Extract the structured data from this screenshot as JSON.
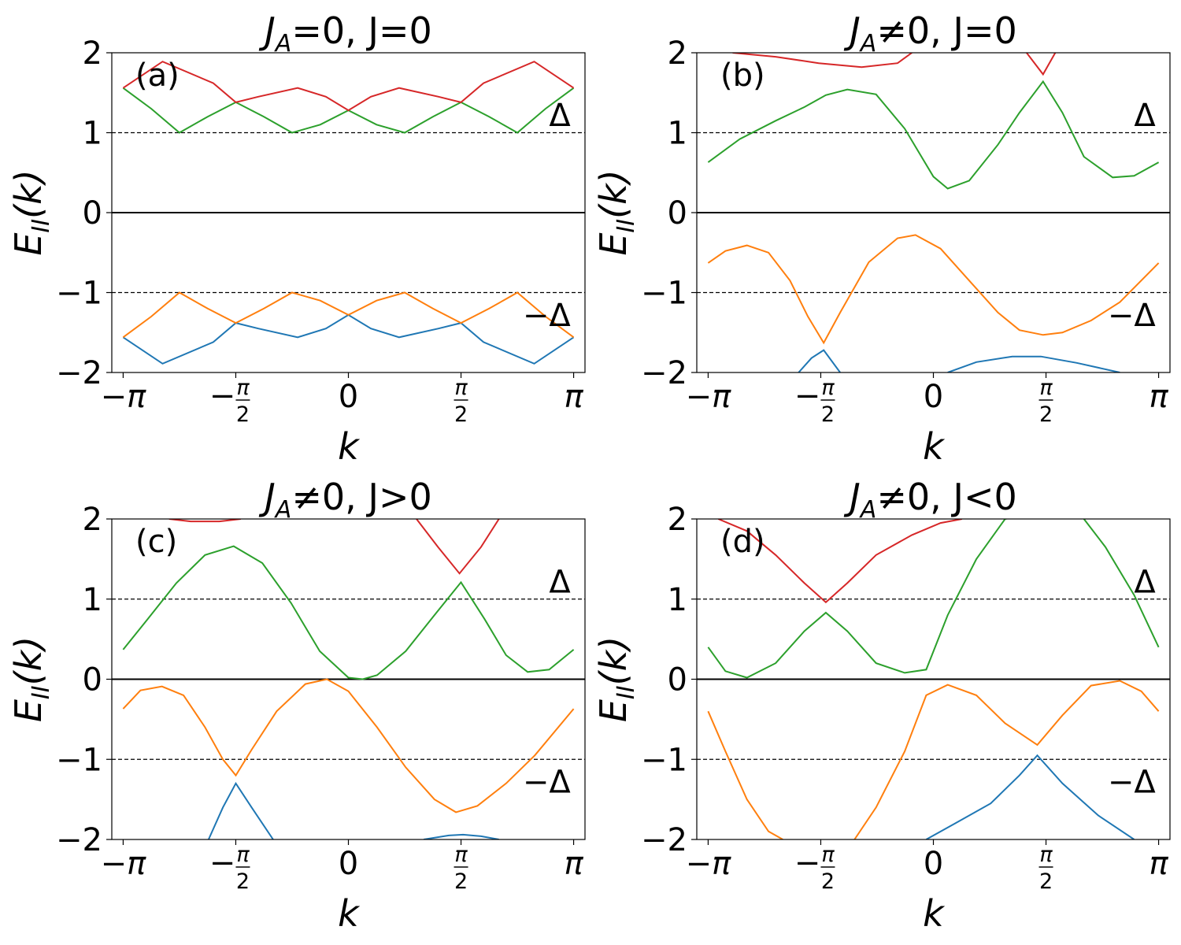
{
  "chart_data": [
    {
      "type": "line",
      "title": "J_A=0, J=0",
      "title_parts": {
        "sym": "J",
        "sub": "A",
        "rest": "=0, J=0"
      },
      "panel_label": "(a)",
      "xlabel": "k",
      "ylabel": "E_II(k)",
      "ylabel_parts": {
        "sym": "E",
        "sub": "II",
        "rest": "(k)"
      },
      "xlim": [
        -3.3,
        3.3
      ],
      "ylim": [
        -2,
        2
      ],
      "yticks": [
        -2,
        -1,
        0,
        1,
        2
      ],
      "ytick_labels": [
        "−2",
        "−1",
        "0",
        "1",
        "2"
      ],
      "hlines": [
        {
          "y": 0,
          "style": "solid"
        },
        {
          "y": 1,
          "style": "dashed"
        },
        {
          "y": -1,
          "style": "dashed"
        }
      ],
      "annotations": [
        {
          "text": "Δ",
          "x": 3.1,
          "y": 1.22
        },
        {
          "text": "−Δ",
          "x": 3.1,
          "y": -1.28
        }
      ],
      "series": [
        {
          "color": "#1f77b4",
          "x": [
            -3.1416,
            -2.5918,
            -1.885,
            -1.5708,
            -1.2566,
            -0.7069,
            -0.3142,
            0.0,
            0.3142,
            0.7069,
            1.2566,
            1.5708,
            1.885,
            2.5918,
            3.1416
          ],
          "y": [
            -1.56,
            -1.89,
            -1.62,
            -1.38,
            -1.45,
            -1.56,
            -1.45,
            -1.28,
            -1.45,
            -1.56,
            -1.45,
            -1.38,
            -1.62,
            -1.89,
            -1.56
          ]
        },
        {
          "color": "#ff7f0e",
          "x": [
            -3.1416,
            -2.7489,
            -2.3562,
            -1.9635,
            -1.5708,
            -1.1781,
            -0.7854,
            -0.3927,
            0.0,
            0.3927,
            0.7854,
            1.1781,
            1.5708,
            1.9635,
            2.3562,
            2.7489,
            3.1416
          ],
          "y": [
            -1.56,
            -1.3,
            -1.0,
            -1.2,
            -1.38,
            -1.2,
            -1.0,
            -1.1,
            -1.28,
            -1.1,
            -1.0,
            -1.2,
            -1.38,
            -1.2,
            -1.0,
            -1.3,
            -1.56
          ]
        },
        {
          "color": "#2ca02c",
          "x": [
            -3.1416,
            -2.7489,
            -2.3562,
            -1.9635,
            -1.5708,
            -1.1781,
            -0.7854,
            -0.3927,
            0.0,
            0.3927,
            0.7854,
            1.1781,
            1.5708,
            1.9635,
            2.3562,
            2.7489,
            3.1416
          ],
          "y": [
            1.56,
            1.3,
            1.0,
            1.2,
            1.38,
            1.2,
            1.0,
            1.1,
            1.28,
            1.1,
            1.0,
            1.2,
            1.38,
            1.2,
            1.0,
            1.3,
            1.56
          ]
        },
        {
          "color": "#d62728",
          "x": [
            -3.1416,
            -2.5918,
            -1.885,
            -1.5708,
            -1.2566,
            -0.7069,
            -0.3142,
            0.0,
            0.3142,
            0.7069,
            1.2566,
            1.5708,
            1.885,
            2.5918,
            3.1416
          ],
          "y": [
            1.56,
            1.89,
            1.62,
            1.38,
            1.45,
            1.56,
            1.45,
            1.28,
            1.45,
            1.56,
            1.45,
            1.38,
            1.62,
            1.89,
            1.56
          ]
        }
      ]
    },
    {
      "type": "line",
      "title": "J_A≠0, J=0",
      "title_parts": {
        "sym": "J",
        "sub": "A",
        "rest": "≠0, J=0"
      },
      "panel_label": "(b)",
      "xlabel": "k",
      "ylabel": "E_II(k)",
      "ylabel_parts": {
        "sym": "E",
        "sub": "II",
        "rest": "(k)"
      },
      "xlim": [
        -3.3,
        3.3
      ],
      "ylim": [
        -2,
        2
      ],
      "yticks": [
        -2,
        -1,
        0,
        1,
        2
      ],
      "ytick_labels": [
        "−2",
        "−1",
        "0",
        "1",
        "2"
      ],
      "hlines": [
        {
          "y": 0,
          "style": "solid"
        },
        {
          "y": 1,
          "style": "dashed"
        },
        {
          "y": -1,
          "style": "dashed"
        }
      ],
      "annotations": [
        {
          "text": "Δ",
          "x": 3.1,
          "y": 1.22
        },
        {
          "text": "−Δ",
          "x": 3.1,
          "y": -1.28
        }
      ],
      "series": [
        {
          "color": "#1f77b4",
          "x": [
            -1.88,
            -1.7,
            -1.53,
            -1.3
          ],
          "y": [
            -2.0,
            -1.82,
            -1.72,
            -2.0
          ],
          "segments": [
            [
              -1.88,
              -1.7,
              -1.53,
              -1.3
            ]
          ]
        },
        {
          "color": "#1f77b4",
          "x": [
            0.2,
            0.6,
            1.1,
            1.5,
            2.0,
            2.6
          ],
          "y": [
            -2.0,
            -1.87,
            -1.8,
            -1.8,
            -1.88,
            -2.0
          ]
        },
        {
          "color": "#ff7f0e",
          "x": [
            -3.1416,
            -2.9,
            -2.6,
            -2.3,
            -2.0,
            -1.75,
            -1.53,
            -1.3,
            -0.9,
            -0.5,
            -0.25,
            0.1,
            0.5,
            0.9,
            1.2,
            1.53,
            1.8,
            2.2,
            2.6,
            3.1416
          ],
          "y": [
            -0.63,
            -0.48,
            -0.41,
            -0.5,
            -0.85,
            -1.3,
            -1.63,
            -1.25,
            -0.62,
            -0.32,
            -0.28,
            -0.45,
            -0.85,
            -1.25,
            -1.47,
            -1.53,
            -1.5,
            -1.35,
            -1.12,
            -0.63
          ]
        },
        {
          "color": "#2ca02c",
          "x": [
            -3.1416,
            -2.7,
            -2.2,
            -1.8,
            -1.5,
            -1.2,
            -0.8,
            -0.4,
            0.0,
            0.2,
            0.5,
            0.9,
            1.2,
            1.53,
            1.8,
            2.1,
            2.5,
            2.8,
            3.1416
          ],
          "y": [
            0.63,
            0.92,
            1.15,
            1.32,
            1.47,
            1.54,
            1.48,
            1.05,
            0.45,
            0.3,
            0.4,
            0.85,
            1.25,
            1.64,
            1.25,
            0.7,
            0.44,
            0.46,
            0.63
          ]
        },
        {
          "color": "#d62728",
          "x": [
            -2.8,
            -2.2,
            -1.6,
            -1.0,
            -0.5,
            -0.3
          ],
          "y": [
            2.0,
            1.95,
            1.87,
            1.82,
            1.87,
            2.0
          ]
        },
        {
          "color": "#d62728",
          "x": [
            1.3,
            1.53,
            1.7
          ],
          "y": [
            2.0,
            1.73,
            2.0
          ]
        }
      ]
    },
    {
      "type": "line",
      "title": "J_A≠0, J>0",
      "title_parts": {
        "sym": "J",
        "sub": "A",
        "rest": "≠0, J>0"
      },
      "panel_label": "(c)",
      "xlabel": "k",
      "ylabel": "E_II(k)",
      "ylabel_parts": {
        "sym": "E",
        "sub": "II",
        "rest": "(k)"
      },
      "xlim": [
        -3.3,
        3.3
      ],
      "ylim": [
        -2,
        2
      ],
      "yticks": [
        -2,
        -1,
        0,
        1,
        2
      ],
      "ytick_labels": [
        "−2",
        "−1",
        "0",
        "1",
        "2"
      ],
      "hlines": [
        {
          "y": 0,
          "style": "solid"
        },
        {
          "y": 1,
          "style": "dashed"
        },
        {
          "y": -1,
          "style": "dashed"
        }
      ],
      "annotations": [
        {
          "text": "Δ",
          "x": 3.1,
          "y": 1.22
        },
        {
          "text": "−Δ",
          "x": 3.1,
          "y": -1.28
        }
      ],
      "series": [
        {
          "color": "#1f77b4",
          "x": [
            -1.95,
            -1.75,
            -1.57,
            -1.35,
            -1.05
          ],
          "y": [
            -2.0,
            -1.6,
            -1.3,
            -1.6,
            -2.0
          ]
        },
        {
          "color": "#1f77b4",
          "x": [
            1.05,
            1.4,
            1.6,
            1.85,
            2.1
          ],
          "y": [
            -2.0,
            -1.95,
            -1.94,
            -1.96,
            -2.0
          ]
        },
        {
          "color": "#ff7f0e",
          "x": [
            -3.1416,
            -2.9,
            -2.6,
            -2.3,
            -2.0,
            -1.75,
            -1.57,
            -1.35,
            -1.0,
            -0.6,
            -0.3,
            0.0,
            0.4,
            0.8,
            1.2,
            1.5,
            1.8,
            2.2,
            2.6,
            3.1416
          ],
          "y": [
            -0.37,
            -0.14,
            -0.09,
            -0.2,
            -0.6,
            -1.0,
            -1.2,
            -0.88,
            -0.4,
            -0.06,
            0.0,
            -0.15,
            -0.6,
            -1.1,
            -1.5,
            -1.66,
            -1.58,
            -1.3,
            -0.95,
            -0.37
          ]
        },
        {
          "color": "#2ca02c",
          "x": [
            -3.1416,
            -2.8,
            -2.4,
            -2.0,
            -1.6,
            -1.2,
            -0.8,
            -0.4,
            0.0,
            0.2,
            0.4,
            0.8,
            1.2,
            1.57,
            1.9,
            2.2,
            2.5,
            2.8,
            3.1416
          ],
          "y": [
            0.37,
            0.75,
            1.2,
            1.55,
            1.66,
            1.45,
            0.95,
            0.35,
            0.02,
            0.0,
            0.05,
            0.35,
            0.8,
            1.21,
            0.75,
            0.3,
            0.09,
            0.12,
            0.37
          ]
        },
        {
          "color": "#d62728",
          "x": [
            -2.5,
            -2.2,
            -1.8,
            -1.5
          ],
          "y": [
            2.0,
            1.97,
            1.97,
            2.0
          ]
        },
        {
          "color": "#d62728",
          "x": [
            0.95,
            1.25,
            1.55,
            1.85,
            2.1
          ],
          "y": [
            2.0,
            1.65,
            1.32,
            1.65,
            2.0
          ]
        }
      ]
    },
    {
      "type": "line",
      "title": "J_A≠0, J<0",
      "title_parts": {
        "sym": "J",
        "sub": "A",
        "rest": "≠0, J<0"
      },
      "panel_label": "(d)",
      "xlabel": "k",
      "ylabel": "E_II(k)",
      "ylabel_parts": {
        "sym": "E",
        "sub": "II",
        "rest": "(k)"
      },
      "xlim": [
        -3.3,
        3.3
      ],
      "ylim": [
        -2,
        2
      ],
      "yticks": [
        -2,
        -1,
        0,
        1,
        2
      ],
      "ytick_labels": [
        "−2",
        "−1",
        "0",
        "1",
        "2"
      ],
      "hlines": [
        {
          "y": 0,
          "style": "solid"
        },
        {
          "y": 1,
          "style": "dashed"
        },
        {
          "y": -1,
          "style": "dashed"
        }
      ],
      "annotations": [
        {
          "text": "Δ",
          "x": 3.1,
          "y": 1.22
        },
        {
          "text": "−Δ",
          "x": 3.1,
          "y": -1.28
        }
      ],
      "series": [
        {
          "color": "#1f77b4",
          "x": [
            -0.1,
            0.3,
            0.8,
            1.2,
            1.45,
            1.8,
            2.3,
            2.8
          ],
          "y": [
            -2.0,
            -1.8,
            -1.55,
            -1.2,
            -0.95,
            -1.3,
            -1.7,
            -2.0
          ]
        },
        {
          "color": "#ff7f0e",
          "x": [
            -3.1416,
            -2.9,
            -2.6,
            -2.3,
            -2.1
          ],
          "y": [
            -0.4,
            -0.9,
            -1.5,
            -1.9,
            -2.0
          ]
        },
        {
          "color": "#ff7f0e",
          "x": [
            -1.1,
            -0.8,
            -0.4,
            -0.1,
            0.2,
            0.6,
            1.0,
            1.45,
            1.8,
            2.2,
            2.6,
            2.9,
            3.1416
          ],
          "y": [
            -2.0,
            -1.6,
            -0.9,
            -0.2,
            -0.07,
            -0.2,
            -0.55,
            -0.82,
            -0.45,
            -0.08,
            -0.02,
            -0.15,
            -0.4
          ]
        },
        {
          "color": "#2ca02c",
          "x": [
            -3.1416,
            -2.9,
            -2.6,
            -2.2,
            -1.8,
            -1.5,
            -1.2,
            -0.8,
            -0.4,
            -0.1,
            0.2,
            0.6,
            1.0,
            1.3
          ],
          "y": [
            0.4,
            0.1,
            0.02,
            0.2,
            0.6,
            0.83,
            0.6,
            0.2,
            0.08,
            0.12,
            0.8,
            1.5,
            2.0,
            2.05
          ]
        },
        {
          "color": "#2ca02c",
          "x": [
            2.1,
            2.4,
            2.8,
            3.1416
          ],
          "y": [
            2.0,
            1.65,
            1.05,
            0.4
          ]
        },
        {
          "color": "#d62728",
          "x": [
            -3.0,
            -2.6,
            -2.2,
            -1.8,
            -1.5,
            -1.2,
            -0.8,
            -0.3,
            0.1,
            0.4
          ],
          "y": [
            2.0,
            1.85,
            1.55,
            1.2,
            0.96,
            1.2,
            1.55,
            1.8,
            1.95,
            2.0
          ]
        }
      ]
    }
  ]
}
